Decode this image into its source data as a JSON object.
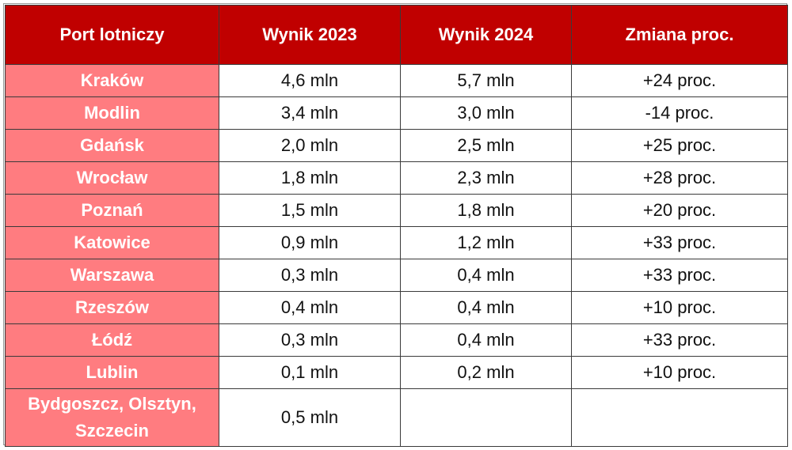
{
  "chart_data": {
    "type": "table",
    "columns": [
      "Port lotniczy",
      "Wynik 2023",
      "Wynik 2024",
      "Zmiana proc."
    ],
    "rows": [
      [
        "Kraków",
        "4,6 mln",
        "5,7 mln",
        "+24 proc."
      ],
      [
        "Modlin",
        "3,4 mln",
        "3,0 mln",
        "-14 proc."
      ],
      [
        "Gdańsk",
        "2,0 mln",
        "2,5 mln",
        "+25 proc."
      ],
      [
        "Wrocław",
        "1,8 mln",
        "2,3 mln",
        "+28 proc."
      ],
      [
        "Poznań",
        "1,5 mln",
        "1,8 mln",
        "+20 proc."
      ],
      [
        "Katowice",
        "0,9 mln",
        "1,2 mln",
        "+33 proc."
      ],
      [
        "Warszawa",
        "0,3 mln",
        "0,4 mln",
        "+33 proc."
      ],
      [
        "Rzeszów",
        "0,4 mln",
        "0,4 mln",
        "+10 proc."
      ],
      [
        "Łódź",
        "0,3 mln",
        "0,4 mln",
        "+33 proc."
      ],
      [
        "Lublin",
        "0,1 mln",
        "0,2 mln",
        "+10 proc."
      ],
      [
        "Bydgoszcz, Olsztyn, Szczecin",
        "0,5 mln",
        "",
        ""
      ]
    ]
  },
  "colors": {
    "header_bg": "#c00000",
    "airport_bg": "#ff7c80"
  }
}
